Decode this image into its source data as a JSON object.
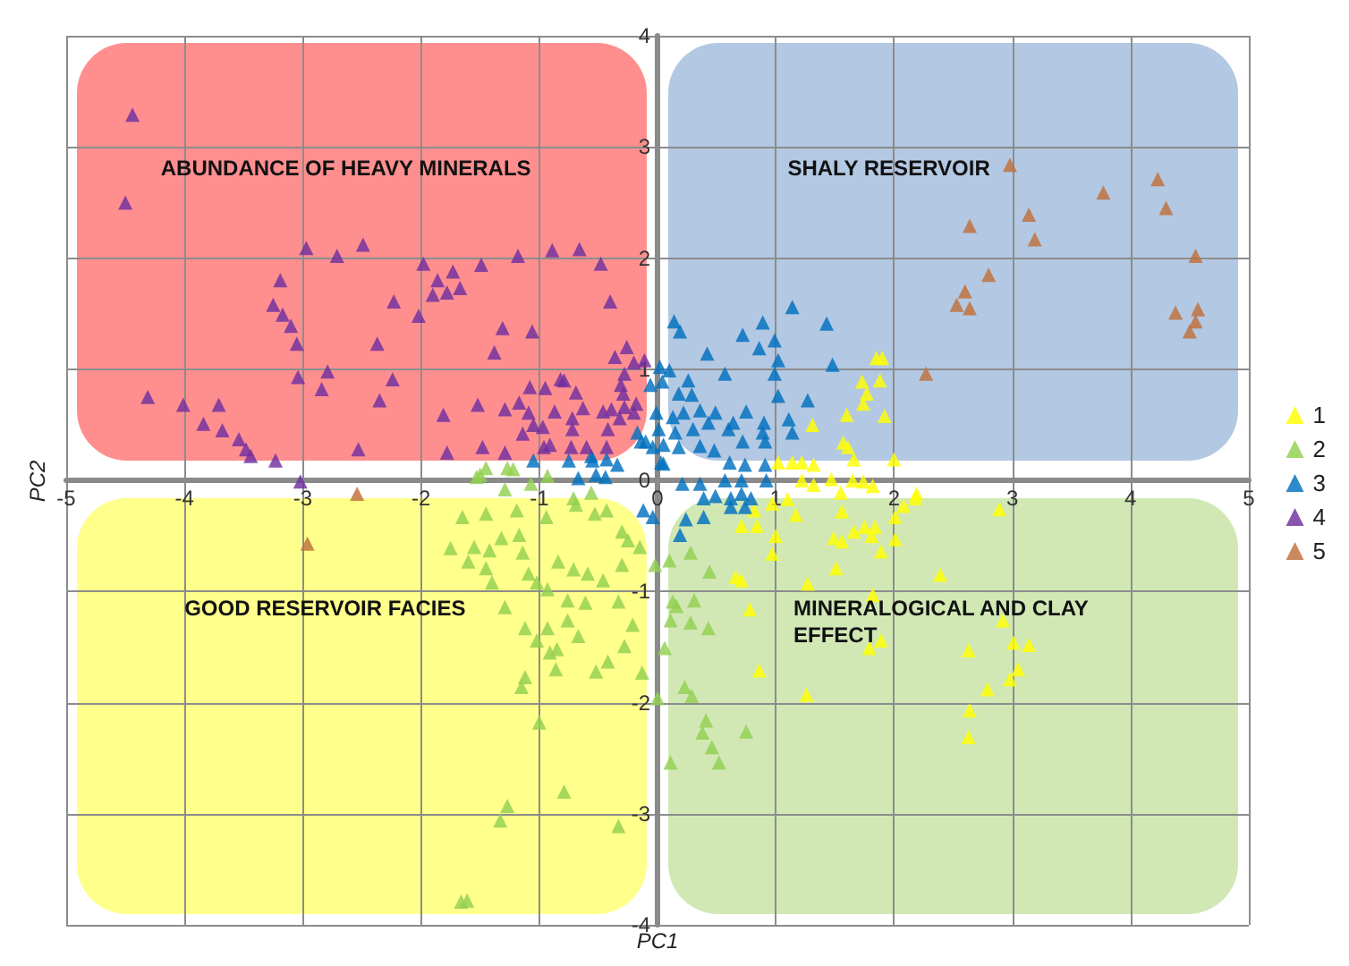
{
  "chart_data": {
    "type": "scatter",
    "xlabel": "PC1",
    "ylabel": "PC2",
    "xlim": [
      -5,
      5
    ],
    "ylim": [
      -4,
      4
    ],
    "xticks": [
      -5,
      -4,
      -3,
      -2,
      -1,
      0,
      1,
      2,
      3,
      4,
      5
    ],
    "yticks": [
      -4,
      -3,
      -2,
      -1,
      0,
      1,
      2,
      3,
      4
    ],
    "grid": true,
    "legend": "right",
    "marker": "triangle",
    "annotations": [
      "ABUNDANCE OF HEAVY MINERALS",
      "SHALY RESERVOIR",
      "GOOD RESERVOIR FACIES",
      "MINERALOGICAL AND CLAY\nEFFECT"
    ],
    "series": [
      {
        "name": "1",
        "color": "#ffff00",
        "x": [
          1.02,
          1.14,
          1.32,
          1.66,
          2.0,
          1.22,
          1.22,
          1.47,
          1.65,
          1.74,
          1.32,
          1.82,
          1.85,
          1.9,
          1.73,
          1.88,
          1.77,
          1.74,
          1.6,
          1.92,
          1.31,
          1.57,
          1.61,
          0.82,
          0.71,
          0.84,
          1.1,
          1.17,
          1.0,
          0.97,
          1.56,
          1.55,
          1.49,
          1.56,
          1.66,
          1.75,
          1.84,
          1.81,
          1.89,
          2.01,
          2.01,
          2.08,
          2.18,
          2.19,
          1.51,
          2.39,
          1.27,
          1.82,
          2.92,
          1.89,
          1.79,
          2.63,
          3.01,
          3.14,
          3.05,
          2.98,
          2.79,
          1.26,
          2.64,
          2.63,
          2.89,
          0.66,
          0.71,
          0.78,
          0.86,
          0.97
        ],
        "values": [
          0.16,
          0.16,
          0.14,
          0.19,
          0.19,
          0.16,
          0,
          0.01,
          0,
          -0.01,
          -0.04,
          -0.05,
          1.1,
          1.1,
          0.89,
          0.9,
          0.78,
          0.69,
          0.59,
          0.58,
          0.5,
          0.34,
          0.3,
          -0.27,
          -0.41,
          -0.41,
          -0.17,
          -0.31,
          -0.5,
          -0.66,
          -0.28,
          -0.11,
          -0.52,
          -0.55,
          -0.46,
          -0.42,
          -0.42,
          -0.5,
          -0.64,
          -0.53,
          -0.33,
          -0.23,
          -0.16,
          -0.12,
          -0.79,
          -0.85,
          -0.93,
          -1.03,
          -1.26,
          -1.44,
          -1.51,
          -1.53,
          -1.46,
          -1.48,
          -1.7,
          -1.79,
          -1.88,
          -1.93,
          -2.07,
          -2.31,
          -0.26,
          -0.87,
          -0.9,
          -1.16,
          -1.71,
          -0.21
        ]
      },
      {
        "name": "2",
        "color": "#92d050",
        "x": [
          -0.02,
          0.1,
          0.28,
          0.44,
          0.13,
          0.16,
          0.31,
          0.11,
          0.28,
          0.43,
          0.06,
          0.23,
          0.29,
          0,
          0.41,
          0.38,
          0.75,
          0.46,
          0.52,
          0.11,
          -1.5,
          -1.27,
          -1.22,
          -0.93,
          -1.07,
          -1.29,
          -1.45,
          -0.71,
          -0.56,
          -1.65,
          -1.45,
          -1.19,
          -0.94,
          -0.69,
          -0.53,
          -0.43,
          -1.75,
          -1.55,
          -1.32,
          -1.17,
          -1.14,
          -1.42,
          -1.6,
          -1.45,
          -1.4,
          -0.84,
          -0.71,
          -0.59,
          -1.09,
          -1.02,
          -0.93,
          -0.76,
          -0.61,
          -0.33,
          -0.46,
          -0.3,
          -0.25,
          -0.15,
          -0.3,
          -1.29,
          -1.12,
          -0.93,
          -0.76,
          -0.67,
          -1.02,
          -0.85,
          -0.91,
          -0.28,
          -0.21,
          -0.86,
          -0.52,
          -0.42,
          -0.13,
          -1.12,
          -1.15,
          -1.0,
          -0.79,
          -1.27,
          -1.33,
          -0.33,
          -1.66,
          -1.61,
          -1.53
        ],
        "values": [
          -0.76,
          -0.72,
          -0.65,
          -0.82,
          -1.09,
          -1.13,
          -1.08,
          -1.26,
          -1.28,
          -1.33,
          -1.51,
          -1.86,
          -1.94,
          -1.96,
          -2.16,
          -2.27,
          -2.26,
          -2.4,
          -2.54,
          -2.54,
          0.05,
          0.11,
          0.1,
          0.04,
          -0.03,
          -0.08,
          0.11,
          -0.16,
          -0.11,
          -0.33,
          -0.3,
          -0.27,
          -0.33,
          -0.22,
          -0.3,
          -0.27,
          -0.61,
          -0.6,
          -0.52,
          -0.49,
          -0.65,
          -0.63,
          -0.73,
          -0.79,
          -0.92,
          -0.73,
          -0.8,
          -0.84,
          -0.84,
          -0.92,
          -0.98,
          -1.08,
          -1.1,
          -1.09,
          -0.9,
          -0.76,
          -0.54,
          -0.6,
          -0.46,
          -1.14,
          -1.33,
          -1.33,
          -1.26,
          -1.4,
          -1.44,
          -1.52,
          -1.55,
          -1.49,
          -1.3,
          -1.7,
          -1.72,
          -1.63,
          -1.73,
          -1.77,
          -1.86,
          -2.18,
          -2.8,
          -2.93,
          -3.06,
          -3.11,
          -3.79,
          -3.78,
          0.03
        ]
      },
      {
        "name": "3",
        "color": "#0070c0",
        "x": [
          0.14,
          0.19,
          0.72,
          0.89,
          1.14,
          1.43,
          0.86,
          0.99,
          0.42,
          1.02,
          1.48,
          0.57,
          0.99,
          0.02,
          0.1,
          0.26,
          0.18,
          0.29,
          1.02,
          1.27,
          0.49,
          0.36,
          0.22,
          0.75,
          0.9,
          1.11,
          0.64,
          0.43,
          0.13,
          -0.01,
          -0.06,
          0.3,
          0.6,
          0.89,
          1.14,
          0.15,
          -0.17,
          -0.1,
          0.05,
          0.18,
          0.36,
          0.48,
          0.72,
          0.91,
          0.61,
          0.74,
          0.91,
          0.03,
          -0.43,
          -0.56,
          0.04,
          -0.14,
          -0.04,
          0.01,
          -1.05,
          -0.75,
          -0.55,
          -0.34,
          -0.44,
          -0.67,
          -0.52,
          0.05,
          0.21,
          0.36,
          0.57,
          0.71,
          0.92,
          -0.04,
          -0.12,
          0.39,
          0.49,
          0.62,
          0.71,
          0.79,
          0.74,
          0.62,
          0.39,
          0.24,
          0.19
        ],
        "values": [
          1.43,
          1.34,
          1.31,
          1.42,
          1.56,
          1.41,
          1.19,
          1.26,
          1.14,
          1.08,
          1.04,
          0.96,
          0.96,
          1.02,
          0.99,
          0.9,
          0.78,
          0.77,
          0.76,
          0.72,
          0.61,
          0.63,
          0.61,
          0.62,
          0.52,
          0.55,
          0.52,
          0.52,
          0.57,
          0.61,
          0.86,
          0.46,
          0.46,
          0.43,
          0.43,
          0.43,
          0.43,
          0.35,
          0.32,
          0.3,
          0.31,
          0.27,
          0.35,
          0.35,
          0.16,
          0.14,
          0.14,
          0.16,
          0.19,
          0.22,
          0.89,
          0.35,
          0.3,
          0.46,
          0.18,
          0.18,
          0.18,
          0.14,
          0.03,
          0.02,
          0.05,
          0.15,
          -0.03,
          -0.03,
          0,
          0,
          0,
          -0.33,
          -0.27,
          -0.16,
          -0.14,
          -0.16,
          -0.12,
          -0.16,
          -0.24,
          -0.24,
          -0.33,
          -0.35,
          -0.49
        ]
      },
      {
        "name": "4",
        "color": "#7030a0",
        "x": [
          -4.44,
          -4.5,
          -2.97,
          -2.71,
          -2.49,
          -1.98,
          -1.49,
          -1.18,
          -0.89,
          -0.66,
          -0.48,
          -0.4,
          -3.19,
          -3.25,
          -3.17,
          -3.1,
          -3.05,
          -2.23,
          -2.02,
          -1.86,
          -1.73,
          -1.9,
          -1.78,
          -1.67,
          -2.37,
          -1.31,
          -1.38,
          -1.06,
          -3.04,
          -2.79,
          -2.84,
          -2.24,
          -2.35,
          -4.31,
          -4.01,
          -3.71,
          -3.84,
          -3.68,
          -3.54,
          -3.48,
          -3.44,
          -3.23,
          -2.53,
          -1.81,
          -1.52,
          -1.29,
          -1.78,
          -1.48,
          -1.29,
          -0.26,
          -0.36,
          -0.2,
          -0.11,
          -0.28,
          -0.31,
          -0.29,
          -0.82,
          -0.79,
          -1.08,
          -0.95,
          -0.69,
          -1.17,
          -1.09,
          -0.87,
          -0.63,
          -0.46,
          -0.39,
          -0.28,
          -0.18,
          -1.05,
          -0.97,
          -0.72,
          -0.72,
          -0.42,
          -0.32,
          -1.14,
          -0.96,
          -0.91,
          -0.73,
          -0.6,
          -0.43,
          -0.2,
          -3.02
        ],
        "values": [
          3.29,
          2.5,
          2.09,
          2.02,
          2.12,
          1.95,
          1.94,
          2.02,
          2.07,
          2.08,
          1.95,
          1.61,
          1.8,
          1.58,
          1.49,
          1.39,
          1.23,
          1.61,
          1.48,
          1.8,
          1.88,
          1.67,
          1.69,
          1.73,
          1.23,
          1.37,
          1.15,
          1.34,
          0.93,
          0.98,
          0.82,
          0.91,
          0.72,
          0.75,
          0.68,
          0.68,
          0.51,
          0.45,
          0.37,
          0.28,
          0.22,
          0.18,
          0.28,
          0.59,
          0.68,
          0.64,
          0.25,
          0.3,
          0.25,
          1.2,
          1.11,
          1.06,
          1.08,
          0.96,
          0.86,
          0.78,
          0.91,
          0.9,
          0.84,
          0.83,
          0.79,
          0.7,
          0.61,
          0.62,
          0.65,
          0.62,
          0.64,
          0.66,
          0.69,
          0.5,
          0.48,
          0.56,
          0.46,
          0.46,
          0.56,
          0.42,
          0.3,
          0.32,
          0.3,
          0.3,
          0.3,
          0.61,
          -0.01
        ]
      },
      {
        "name": "5",
        "color": "#c0703a",
        "x": [
          2.98,
          4.23,
          3.77,
          4.3,
          3.14,
          2.64,
          3.19,
          4.55,
          2.8,
          2.6,
          2.53,
          2.64,
          4.38,
          4.57,
          4.55,
          4.5,
          2.27,
          -2.54,
          -2.96
        ],
        "values": [
          2.84,
          2.71,
          2.59,
          2.45,
          2.39,
          2.29,
          2.17,
          2.02,
          1.85,
          1.7,
          1.58,
          1.55,
          1.51,
          1.54,
          1.43,
          1.34,
          0.96,
          -0.12,
          -0.57
        ]
      }
    ]
  }
}
